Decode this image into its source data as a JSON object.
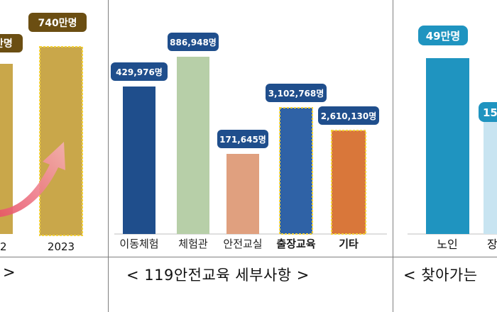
{
  "chart_data": [
    {
      "type": "bar",
      "categories": [
        "2",
        "2023"
      ],
      "values": [
        null,
        740
      ],
      "data_labels": [
        "만명",
        "740만명"
      ],
      "annotation": "increase-arrow",
      "colors": {
        "bar": "#c9a74a",
        "label_bg": "#6b4e12"
      }
    },
    {
      "type": "bar",
      "title": "119안전교육 세부사항",
      "categories": [
        "이동체험",
        "체험관",
        "안전교실",
        "출장교육",
        "기타"
      ],
      "values": [
        429976,
        886948,
        171645,
        3102768,
        2610130
      ],
      "data_labels": [
        "429,976명",
        "886,948명",
        "171,645명",
        "3,102,768명",
        "2,610,130명"
      ],
      "highlighted": [
        "출장교육",
        "기타"
      ],
      "colors": {
        "이동체험": "#1f4e8c",
        "체험관": "#b7cfa8",
        "안전교실": "#e0a07f",
        "출장교육": "#2f62a6",
        "기타": "#d9773a",
        "label_bg": "#1f4e8c"
      }
    },
    {
      "type": "bar",
      "categories": [
        "노인",
        "장"
      ],
      "values": [
        49,
        null
      ],
      "data_labels": [
        "49만명",
        "15"
      ],
      "colors": {
        "bar": "#1f94c0",
        "label_bg": "#1f94c0"
      }
    }
  ],
  "captions": {
    "left": ">",
    "middle": "< 119안전교육 세부사항 >",
    "right": "< 찾아가는"
  }
}
